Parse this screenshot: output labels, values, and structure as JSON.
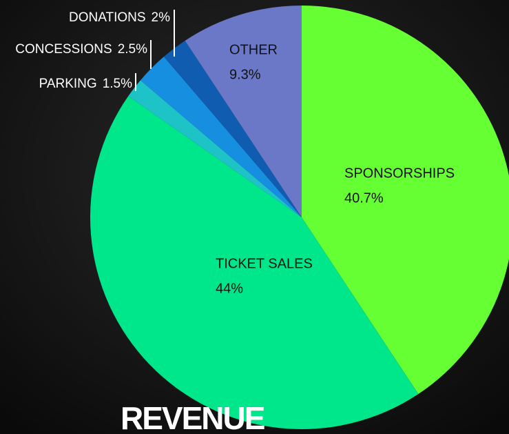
{
  "chart_data": {
    "type": "pie",
    "title": "REVENUE",
    "categories": [
      "SPONSORSHIPS",
      "TICKET SALES",
      "PARKING",
      "CONCESSIONS",
      "DONATIONS",
      "OTHER"
    ],
    "values": [
      40.7,
      44,
      1.5,
      2.5,
      2,
      9.3
    ],
    "value_labels": [
      "40.7%",
      "44%",
      "1.5%",
      "2.5%",
      "2%",
      "9.3%"
    ],
    "colors": [
      "#66ff33",
      "#00e68a",
      "#1ec3c8",
      "#168fe0",
      "#0f5cb0",
      "#6b78c8"
    ]
  }
}
